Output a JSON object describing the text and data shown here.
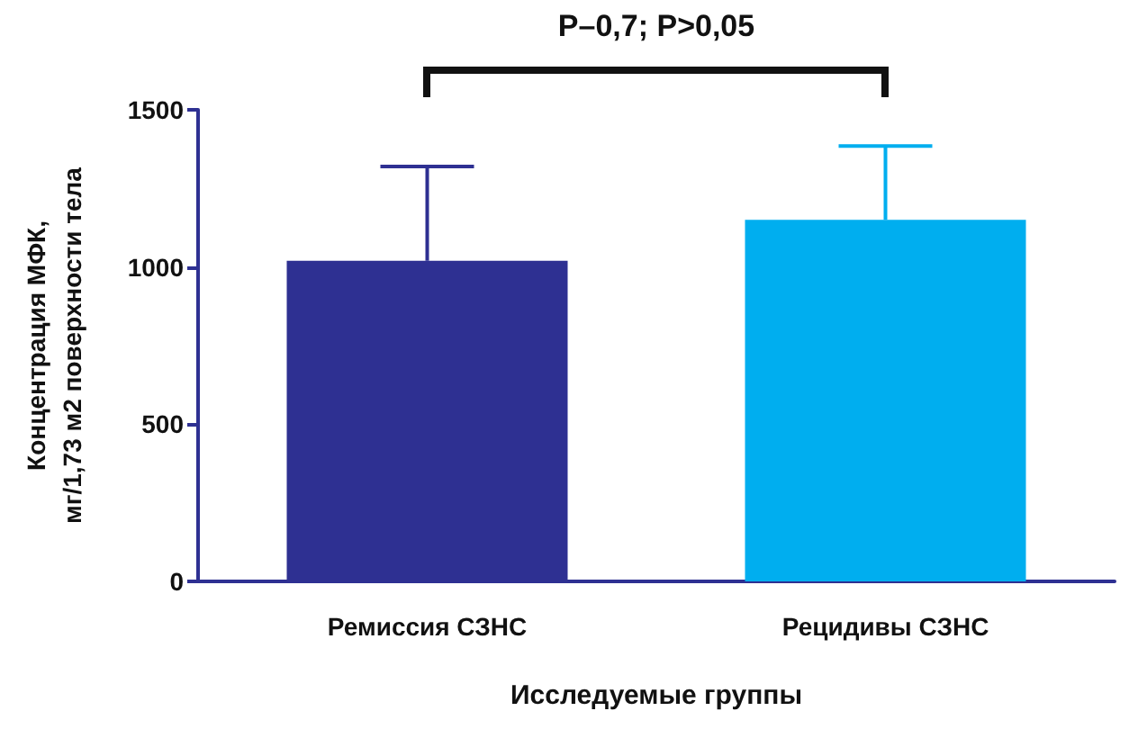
{
  "chart_data": {
    "type": "bar",
    "xlabel": "Исследуемые группы",
    "ylabel": "Концентрация МФК,\nмг/1,73 м2 поверхности тела",
    "categories": [
      "Ремиссия СЗНС",
      "Рецидивы СЗНС"
    ],
    "values": [
      1020,
      1150
    ],
    "colors": [
      "#2e3092",
      "#00aeef"
    ],
    "errors": [
      [
        1020,
        1320
      ],
      [
        1150,
        1385
      ]
    ],
    "ylim": [
      0,
      1500
    ],
    "yticks": [
      0,
      500,
      1000,
      1500
    ],
    "grid": false,
    "annotations": [
      "P–0,7; P>0,05"
    ]
  }
}
